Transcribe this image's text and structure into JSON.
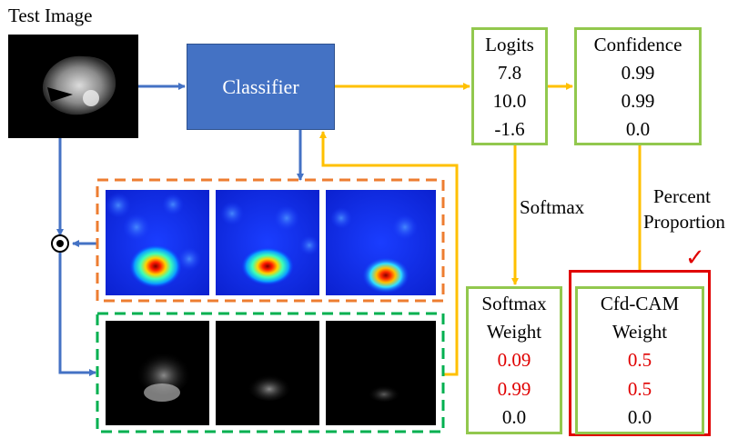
{
  "test_image_label": "Test Image",
  "classifier_label": "Classifier",
  "logits": {
    "title": "Logits",
    "values": [
      "7.8",
      "10.0",
      "-1.6"
    ]
  },
  "confidence": {
    "title": "Confidence",
    "values": [
      "0.99",
      "0.99",
      "0.0"
    ]
  },
  "softmax_edge_label": "Softmax",
  "percent_edge_label": [
    "Percent",
    "Proportion"
  ],
  "softmax_weight": {
    "title": [
      "Softmax",
      "Weight"
    ],
    "values": [
      "0.09",
      "0.99",
      "0.0"
    ],
    "value_colors": [
      "#e00000",
      "#e00000",
      "#000000"
    ]
  },
  "cfd_cam_weight": {
    "title": [
      "Cfd-CAM",
      "Weight"
    ],
    "values": [
      "0.5",
      "0.5",
      "0.0"
    ],
    "value_colors": [
      "#e00000",
      "#e00000",
      "#000000"
    ]
  },
  "checkmark": "✓",
  "colors": {
    "classifier": "#4472c4",
    "blue_arrow": "#4472c4",
    "yellow_arrow": "#ffc000",
    "green_border": "#92c84e",
    "orange_dash": "#ed7d31",
    "green_dash": "#00b050",
    "highlight_red": "#e00000"
  },
  "icons": {
    "multiply": "circled-dot-operator-icon",
    "check": "checkmark-icon"
  }
}
